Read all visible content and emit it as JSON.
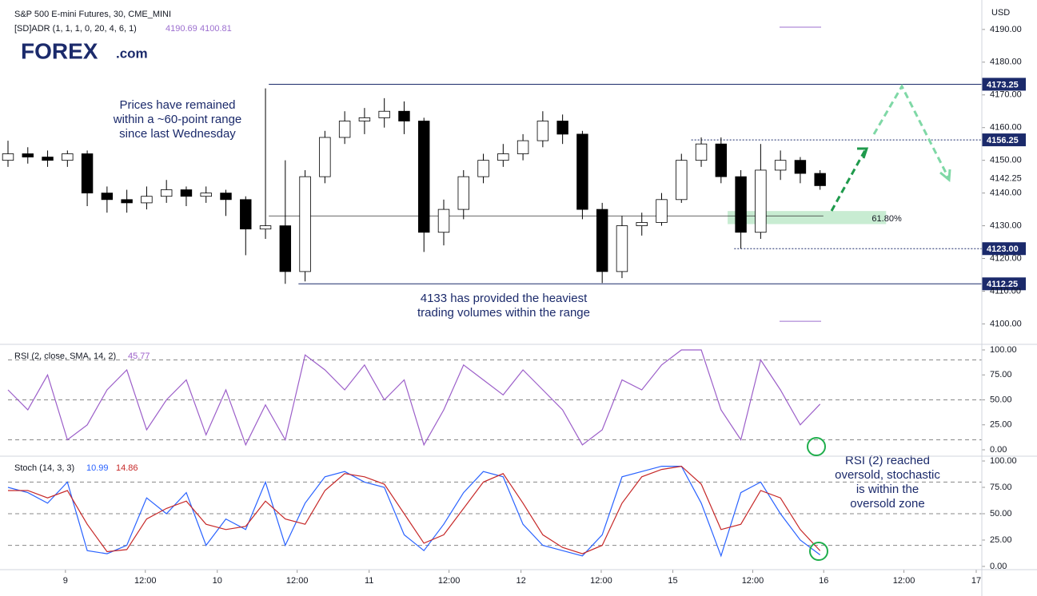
{
  "logo": {
    "text": "FOREX",
    "suffix": ".com"
  },
  "chart_data": [
    {
      "type": "candlestick",
      "title": "S&P 500 E-mini Futures, 30, CME_MINI",
      "currency": "USD",
      "indicator": {
        "name": "[SD]ADR (1, 1, 1, 0, 20, 4, 6, 1)",
        "values": [
          4190.69,
          4100.81
        ],
        "color": "#9c6fcf"
      },
      "up_color": "#ffffff",
      "down_color": "#000000",
      "x": [
        0,
        6,
        12,
        18,
        24,
        30,
        36,
        42,
        48,
        54,
        60,
        66,
        72,
        78,
        84,
        90,
        96,
        102,
        108,
        114,
        120,
        126,
        132,
        138,
        144,
        150,
        156,
        162,
        168,
        174,
        180,
        186,
        192,
        198,
        204,
        210,
        216,
        222,
        228,
        234,
        240,
        246
      ],
      "open": [
        4150,
        4152,
        4151,
        4150,
        4152,
        4140,
        4138,
        4137,
        4139,
        4141,
        4139,
        4140,
        4138,
        4129,
        4130,
        4116,
        4145,
        4157,
        4162,
        4163,
        4165,
        4162,
        4128,
        4135,
        4145,
        4150,
        4152,
        4156,
        4162,
        4158,
        4135,
        4116,
        4130,
        4131,
        4138,
        4150,
        4155,
        4145,
        4128,
        4147,
        4150,
        4146
      ],
      "high": [
        4156,
        4154,
        4153,
        4153,
        4153,
        4142,
        4141,
        4142,
        4144,
        4142,
        4142,
        4141,
        4139,
        4172,
        4150,
        4147,
        4159,
        4165,
        4166,
        4169,
        4168,
        4163,
        4138,
        4147,
        4152,
        4155,
        4158,
        4165,
        4164,
        4159,
        4137,
        4133,
        4134,
        4140,
        4152,
        4157,
        4157,
        4147,
        4155,
        4153,
        4151,
        4147
      ],
      "low": [
        4148,
        4149,
        4148,
        4148,
        4136,
        4134,
        4134,
        4135,
        4137,
        4136,
        4137,
        4133,
        4121,
        4126,
        4112.25,
        4113,
        4143,
        4155,
        4158,
        4160,
        4158,
        4122,
        4124,
        4132,
        4143,
        4148,
        4150,
        4154,
        4155,
        4132,
        4112.5,
        4114,
        4127,
        4130,
        4137,
        4148,
        4143,
        4123,
        4126,
        4144,
        4143,
        4141
      ],
      "close": [
        4152,
        4151,
        4150,
        4152,
        4140,
        4138,
        4137,
        4139,
        4141,
        4139,
        4140,
        4138,
        4129,
        4130,
        4116,
        4145,
        4157,
        4162,
        4163,
        4165,
        4162,
        4128,
        4135,
        4145,
        4150,
        4152,
        4156,
        4162,
        4158,
        4135,
        4116,
        4130,
        4131,
        4138,
        4150,
        4155,
        4145,
        4128,
        4147,
        4150,
        4146,
        4142.25
      ],
      "levels": [
        {
          "value": 4173.25,
          "x0": 79,
          "style": "solid"
        },
        {
          "value": 4156.25,
          "x0": 207,
          "style": "dotted"
        },
        {
          "value": 4123.0,
          "label": "4123.00",
          "x0": 220,
          "style": "dotted"
        },
        {
          "value": 4112.25,
          "x0": 88,
          "style": "solid"
        },
        {
          "value": 4133,
          "x0": 79,
          "x1": 247,
          "style": "thin"
        }
      ],
      "zone": {
        "low": 4130.5,
        "high": 4134.5,
        "x0": 218,
        "x1": 266,
        "label": "61.80%",
        "color": "#c8ecd2"
      },
      "annotations": [
        [
          "Prices have remained",
          "within a ~60-point range",
          "since last Wednesday"
        ],
        [
          "4133 has provided the heaviest",
          "trading volumes within the range"
        ]
      ],
      "xlim": [
        0,
        295
      ],
      "xticks": [
        {
          "value": 17.4,
          "label": "9"
        },
        {
          "value": 41.6,
          "label": "12:00"
        },
        {
          "value": 63.4,
          "label": "10"
        },
        {
          "value": 87.6,
          "label": "12:00"
        },
        {
          "value": 109.4,
          "label": "11"
        },
        {
          "value": 133.6,
          "label": "12:00"
        },
        {
          "value": 155.4,
          "label": "12"
        },
        {
          "value": 179.7,
          "label": "12:00"
        },
        {
          "value": 201.4,
          "label": "15"
        },
        {
          "value": 225.6,
          "label": "12:00"
        },
        {
          "value": 247.1,
          "label": "16"
        },
        {
          "value": 271.4,
          "label": "12:00"
        },
        {
          "value": 293.3,
          "label": "17"
        }
      ],
      "ylim": [
        4094,
        4199
      ],
      "yticks": [
        {
          "value": 4100,
          "label": "4100.00"
        },
        {
          "value": 4110,
          "label": "4110.00"
        },
        {
          "value": 4120,
          "label": "4120.00"
        },
        {
          "value": 4130,
          "label": "4130.00"
        },
        {
          "value": 4140,
          "label": "4140.00"
        },
        {
          "value": 4150,
          "label": "4150.00"
        },
        {
          "value": 4160,
          "label": "4160.00"
        },
        {
          "value": 4170,
          "label": "4170.00"
        },
        {
          "value": 4180,
          "label": "4180.00"
        },
        {
          "value": 4190,
          "label": "4190.00"
        }
      ]
    },
    {
      "type": "line",
      "title": "RSI (2, close, SMA, 14, 2)",
      "x": [
        0,
        6,
        12,
        18,
        24,
        30,
        36,
        42,
        48,
        54,
        60,
        66,
        72,
        78,
        84,
        90,
        96,
        102,
        108,
        114,
        120,
        126,
        132,
        138,
        144,
        150,
        156,
        162,
        168,
        174,
        180,
        186,
        192,
        198,
        204,
        210,
        216,
        222,
        228,
        234,
        240,
        246
      ],
      "series": [
        {
          "color": "#9c5fc9",
          "values": [
            60,
            40,
            75,
            10,
            25,
            60,
            80,
            20,
            50,
            70,
            15,
            60,
            5,
            45,
            10,
            95,
            80,
            60,
            85,
            50,
            70,
            5,
            40,
            85,
            70,
            55,
            80,
            60,
            40,
            5,
            20,
            70,
            60,
            85,
            100,
            100,
            40,
            10,
            90,
            60,
            25,
            45.77
          ]
        }
      ],
      "bands": [
        90,
        50,
        10
      ],
      "xlim": [
        0,
        295
      ],
      "ylim": [
        -5.6,
        104.8
      ],
      "yticks": [
        {
          "value": 0,
          "label": "0.00"
        },
        {
          "value": 25,
          "label": "25.00"
        },
        {
          "value": 50,
          "label": "50.00"
        },
        {
          "value": 75,
          "label": "75.00"
        },
        {
          "value": 100,
          "label": "100.00"
        }
      ]
    },
    {
      "type": "line",
      "title": "Stoch (14, 3, 3)",
      "x": [
        0,
        6,
        12,
        18,
        24,
        30,
        36,
        42,
        48,
        54,
        60,
        66,
        72,
        78,
        84,
        90,
        96,
        102,
        108,
        114,
        120,
        126,
        132,
        138,
        144,
        150,
        156,
        162,
        168,
        174,
        180,
        186,
        192,
        198,
        204,
        210,
        216,
        222,
        228,
        234,
        240,
        246
      ],
      "series": [
        {
          "color": "#2962ff",
          "values": [
            75,
            70,
            60,
            80,
            15,
            12,
            20,
            65,
            50,
            70,
            20,
            45,
            35,
            80,
            20,
            60,
            85,
            90,
            80,
            75,
            30,
            15,
            40,
            70,
            90,
            85,
            40,
            20,
            15,
            10,
            30,
            85,
            90,
            95,
            95,
            60,
            10,
            70,
            80,
            50,
            25,
            10.99
          ]
        },
        {
          "color": "#c62828",
          "values": [
            72,
            72,
            65,
            72,
            40,
            14,
            16,
            45,
            55,
            62,
            40,
            35,
            38,
            62,
            45,
            40,
            72,
            88,
            85,
            78,
            50,
            22,
            30,
            55,
            80,
            88,
            60,
            30,
            18,
            12,
            20,
            60,
            85,
            92,
            95,
            78,
            35,
            40,
            72,
            65,
            35,
            14.86
          ]
        }
      ],
      "bands": [
        80,
        50,
        20
      ],
      "annotation": [
        "RSI (2) reached",
        "oversold, stochastic",
        "is within the",
        "oversold zone"
      ],
      "xlim": [
        0,
        295
      ],
      "ylim": [
        -2.3,
        103.8
      ],
      "yticks": [
        {
          "value": 0,
          "label": "0.00"
        },
        {
          "value": 25,
          "label": "25.00"
        },
        {
          "value": 50,
          "label": "50.00"
        },
        {
          "value": 75,
          "label": "75.00"
        },
        {
          "value": 100,
          "label": "100.00"
        }
      ]
    }
  ]
}
